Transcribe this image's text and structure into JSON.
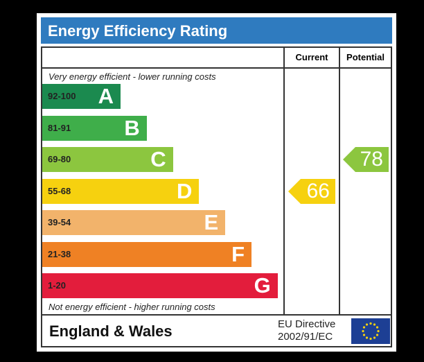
{
  "chart_data": {
    "type": "bar",
    "title": "Energy Efficiency Rating",
    "top_note": "Very energy efficient - lower running costs",
    "bottom_note": "Not energy efficient - higher running costs",
    "columns": [
      "Current",
      "Potential"
    ],
    "bands": [
      {
        "range": "92-100",
        "letter": "A",
        "color": "#1b8a4f"
      },
      {
        "range": "81-91",
        "letter": "B",
        "color": "#3fae4a"
      },
      {
        "range": "69-80",
        "letter": "C",
        "color": "#8cc63f"
      },
      {
        "range": "55-68",
        "letter": "D",
        "color": "#f6d10f"
      },
      {
        "range": "39-54",
        "letter": "E",
        "color": "#f2b36b"
      },
      {
        "range": "21-38",
        "letter": "F",
        "color": "#ef8124"
      },
      {
        "range": "1-20",
        "letter": "G",
        "color": "#e31d3c"
      }
    ],
    "current": {
      "value": 66,
      "band": "D",
      "color": "#f6d10f"
    },
    "potential": {
      "value": 78,
      "band": "C",
      "color": "#8cc63f"
    }
  },
  "footer": {
    "region": "England & Wales",
    "directive_line1": "EU Directive",
    "directive_line2": "2002/91/EC"
  }
}
